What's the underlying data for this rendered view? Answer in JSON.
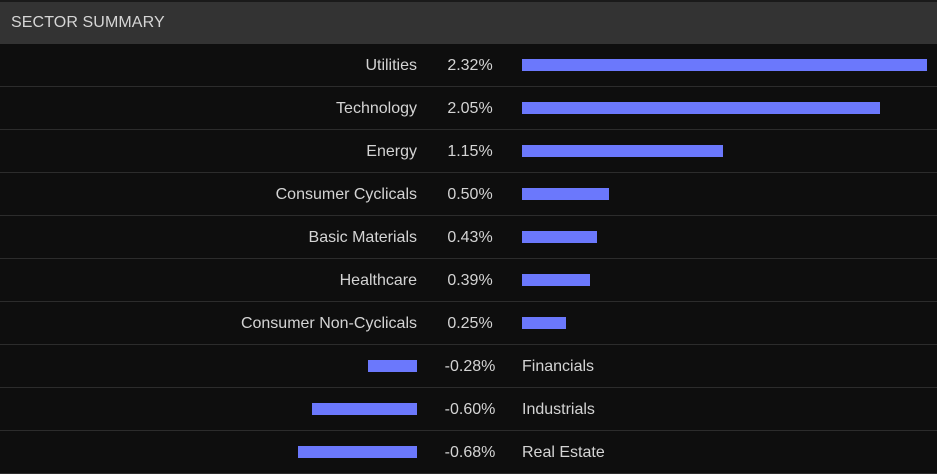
{
  "header": {
    "title": "SECTOR SUMMARY"
  },
  "colors": {
    "bar": "#6b78fc",
    "header_bg": "#333333",
    "bg": "#0e0e0e"
  },
  "chart_data": {
    "type": "bar",
    "orientation": "horizontal",
    "title": "SECTOR SUMMARY",
    "categories": [
      "Utilities",
      "Technology",
      "Energy",
      "Consumer Cyclicals",
      "Basic Materials",
      "Healthcare",
      "Consumer Non-Cyclicals",
      "Financials",
      "Industrials",
      "Real Estate"
    ],
    "values": [
      2.32,
      2.05,
      1.15,
      0.5,
      0.43,
      0.39,
      0.25,
      -0.28,
      -0.6,
      -0.68
    ],
    "value_labels": [
      "2.32%",
      "2.05%",
      "1.15%",
      "0.50%",
      "0.43%",
      "0.39%",
      "0.25%",
      "-0.28%",
      "-0.60%",
      "-0.68%"
    ],
    "unit": "%"
  }
}
